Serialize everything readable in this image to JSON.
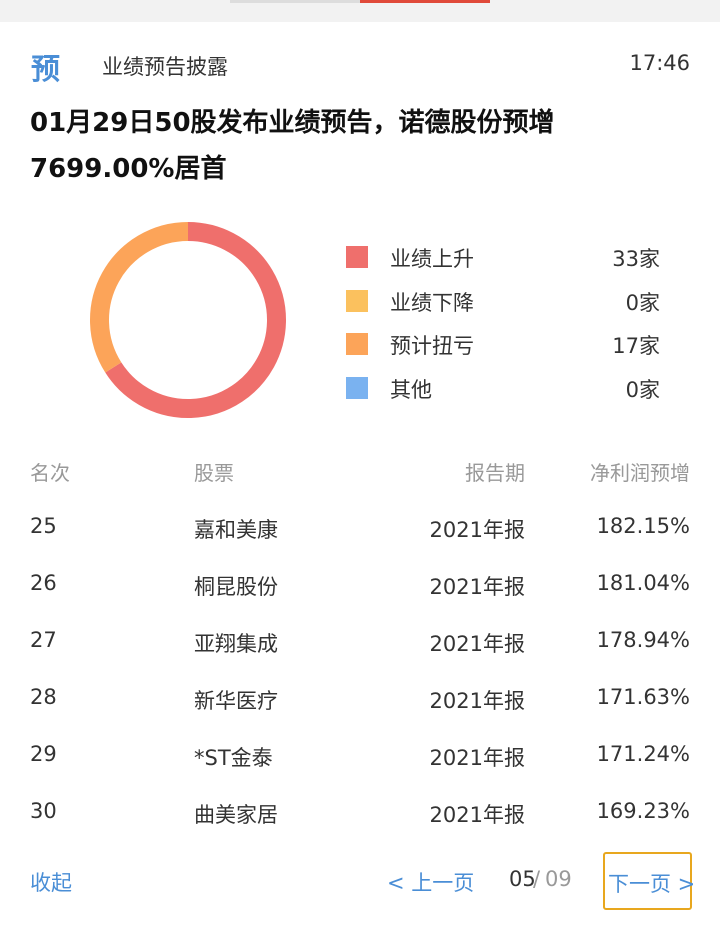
{
  "header": {
    "badge": "预",
    "section_title": "业绩预告披露",
    "time": "17:46"
  },
  "headline": "01月29日50股发布业绩预告，诺德股份预增7699.00%居首",
  "chart_data": {
    "type": "pie",
    "donut": true,
    "categories": [
      "业绩上升",
      "业绩下降",
      "预计扭亏",
      "其他"
    ],
    "values": [
      33,
      0,
      17,
      0
    ],
    "colors": [
      "#ef6f6c",
      "#fbc15e",
      "#fca459",
      "#7ab2f0"
    ]
  },
  "legend": [
    {
      "label": "业绩上升",
      "count": "33家",
      "color": "#ef6f6c"
    },
    {
      "label": "业绩下降",
      "count": "0家",
      "color": "#fbc15e"
    },
    {
      "label": "预计扭亏",
      "count": "17家",
      "color": "#fca459"
    },
    {
      "label": "其他",
      "count": "0家",
      "color": "#7ab2f0"
    }
  ],
  "table": {
    "headers": [
      "名次",
      "股票",
      "报告期",
      "净利润预增"
    ],
    "rows": [
      [
        "25",
        "嘉和美康",
        "2021年报",
        "182.15%"
      ],
      [
        "26",
        "桐昆股份",
        "2021年报",
        "181.04%"
      ],
      [
        "27",
        "亚翔集成",
        "2021年报",
        "178.94%"
      ],
      [
        "28",
        "新华医疗",
        "2021年报",
        "171.63%"
      ],
      [
        "29",
        "*ST金泰",
        "2021年报",
        "171.24%"
      ],
      [
        "30",
        "曲美家居",
        "2021年报",
        "169.23%"
      ]
    ]
  },
  "footer": {
    "collapse": "收起",
    "prev": "< 上一页",
    "page_current": "05",
    "page_separator": "/",
    "page_total": "09",
    "next": "下一页 >"
  },
  "colors": {
    "accent": "#4a8ed6",
    "highlight_border": "#e8a71e",
    "tab_active": "#e04a3a"
  }
}
